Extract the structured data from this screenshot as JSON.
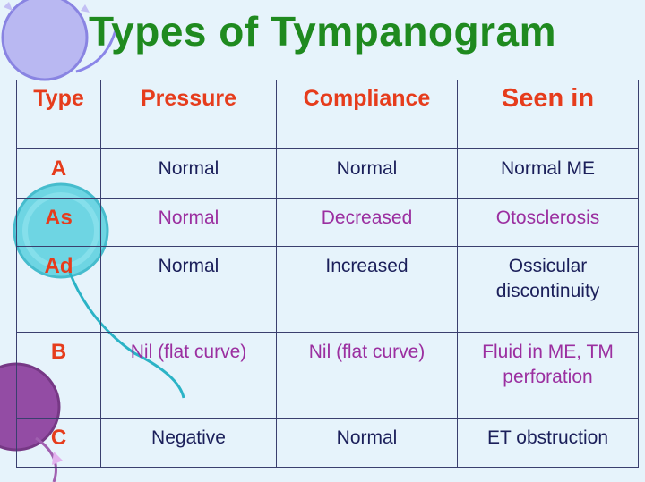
{
  "title": "Types of Tympanogram",
  "table": {
    "headers": {
      "type": "Type",
      "pressure": "Pressure",
      "compliance": "Compliance",
      "seen_in": "Seen in"
    },
    "rows": [
      {
        "type": "A",
        "pressure": "Normal",
        "compliance": "Normal",
        "seen_in": "Normal ME",
        "highlight": false
      },
      {
        "type": "As",
        "pressure": "Normal",
        "compliance": "Decreased",
        "seen_in": "Otosclerosis",
        "highlight": true
      },
      {
        "type": "Ad",
        "pressure": "Normal",
        "compliance": "Increased",
        "seen_in": "Ossicular discontinuity",
        "highlight": false
      },
      {
        "type": "B",
        "pressure": "Nil (flat curve)",
        "compliance": "Nil (flat curve)",
        "seen_in": "Fluid in ME, TM perforation",
        "highlight": true
      },
      {
        "type": "C",
        "pressure": "Negative",
        "compliance": "Normal",
        "seen_in": "ET obstruction",
        "highlight": false
      }
    ]
  },
  "colors": {
    "title": "#1f8a1f",
    "header_text": "#e63c1c",
    "body_text": "#1b1f5a",
    "highlight_text": "#9b2fa0",
    "background": "#e6f3fb"
  }
}
